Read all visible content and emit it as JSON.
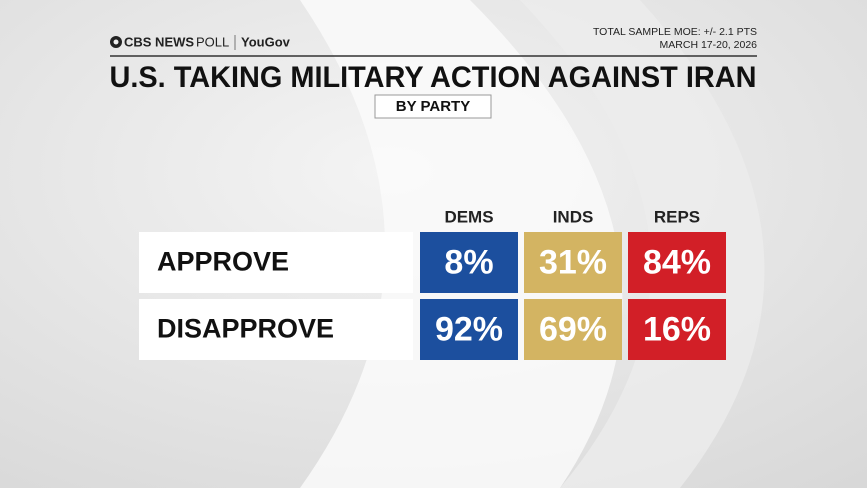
{
  "header": {
    "brand": "CBS NEWS",
    "brand_suffix": "POLL",
    "partner": "YouGov",
    "moe": "TOTAL SAMPLE MOE: +/- 2.1 PTS",
    "dates": "MARCH 17-20, 2026",
    "title": "U.S. TAKING MILITARY ACTION AGAINST IRAN",
    "subtitle": "BY PARTY"
  },
  "table": {
    "columns": [
      "DEMS",
      "INDS",
      "REPS"
    ],
    "column_colors": [
      "#1c4f9e",
      "#d3b462",
      "#d21f27"
    ],
    "rows": [
      {
        "label": "APPROVE",
        "cells": [
          "8%",
          "31%",
          "84%"
        ]
      },
      {
        "label": "DISAPPROVE",
        "cells": [
          "92%",
          "69%",
          "16%"
        ]
      }
    ]
  }
}
